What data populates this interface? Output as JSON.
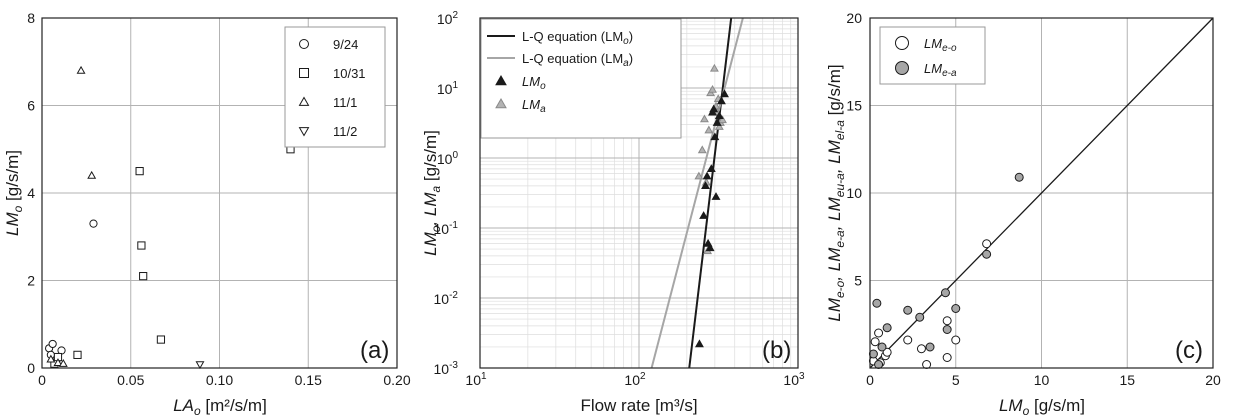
{
  "chart_data": [
    {
      "panel": "(a)",
      "type": "scatter",
      "xlabel_main": "LA",
      "xlabel_sub": "o",
      "xlabel_unit": " [m²/s/m]",
      "ylabel_main": "LM",
      "ylabel_sub": "o",
      "ylabel_unit": " [g/s/m]",
      "xlim": [
        0,
        0.2
      ],
      "ylim": [
        0,
        8
      ],
      "xticks": [
        0,
        0.05,
        0.1,
        0.15,
        0.2
      ],
      "xtick_labels": [
        "0",
        "0.05",
        "0.10",
        "0.15",
        "0.20"
      ],
      "yticks": [
        2,
        4,
        6,
        8
      ],
      "ytick_labels": [
        "2",
        "4",
        "6",
        "8"
      ],
      "grid": true,
      "legend_position": "top-right",
      "series": [
        {
          "name": "9/24",
          "marker": "circle",
          "x": [
            0.004,
            0.006,
            0.005,
            0.011,
            0.008,
            0.029
          ],
          "y": [
            0.45,
            0.55,
            0.3,
            0.4,
            0.15,
            3.3
          ]
        },
        {
          "name": "10/31",
          "marker": "square",
          "x": [
            0.007,
            0.009,
            0.02,
            0.055,
            0.056,
            0.057,
            0.067,
            0.14
          ],
          "y": [
            0.1,
            0.25,
            0.3,
            4.5,
            2.8,
            2.1,
            0.65,
            5.0
          ]
        },
        {
          "name": "11/1",
          "marker": "triangle-up",
          "x": [
            0.005,
            0.009,
            0.012,
            0.022,
            0.028
          ],
          "y": [
            0.2,
            0.12,
            0.1,
            6.8,
            4.4
          ]
        },
        {
          "name": "11/2",
          "marker": "triangle-down",
          "x": [
            0.089
          ],
          "y": [
            0.08
          ]
        }
      ]
    },
    {
      "panel": "(b)",
      "type": "scatter",
      "xscale": "log",
      "yscale": "log",
      "xlabel": "Flow rate [m³/s]",
      "ylabel_main": "LM",
      "ylabel_sub1": "o",
      "ylabel_sep": ", LM",
      "ylabel_sub2": "a",
      "ylabel_unit": " [g/s/m]",
      "xlim": [
        10,
        1000
      ],
      "ylim": [
        0.001,
        100
      ],
      "xtick_labels": [
        "10",
        "10",
        "10"
      ],
      "xtick_exps": [
        "1",
        "2",
        "3"
      ],
      "ytick_labels": [
        "10",
        "10",
        "10",
        "10",
        "10",
        "10"
      ],
      "ytick_exps": [
        "-3",
        "-2",
        "-1",
        "0",
        "1",
        "2"
      ],
      "grid": true,
      "legend_position": "top-left",
      "lines": [
        {
          "name": "L-Q equation (LM",
          "name_sub": "o",
          "name_tail": ")",
          "color": "#1a1a1a",
          "x": [
            207,
            380
          ],
          "y": [
            0.001,
            100
          ]
        },
        {
          "name": "L-Q equation (LM",
          "name_sub": "a",
          "name_tail": ")",
          "color": "#a6a6a6",
          "x": [
            120,
            450
          ],
          "y": [
            0.001,
            100
          ]
        }
      ],
      "series": [
        {
          "name": "LM",
          "name_sub": "o",
          "marker": "triangle-filled",
          "color": "#1a1a1a",
          "x": [
            240,
            255,
            262,
            268,
            272,
            280,
            285,
            290,
            295,
            300,
            305,
            310,
            320,
            330,
            345
          ],
          "y": [
            0.0022,
            0.15,
            0.4,
            0.55,
            0.06,
            0.052,
            0.7,
            4.5,
            5.0,
            2.0,
            0.28,
            3.2,
            4.0,
            6.5,
            8.2
          ]
        },
        {
          "name": "LM",
          "name_sub": "a",
          "marker": "triangle-gray",
          "color": "#b3b3b3",
          "x": [
            238,
            250,
            258,
            265,
            270,
            275,
            282,
            290,
            298,
            305,
            310,
            315,
            320,
            325,
            335
          ],
          "y": [
            0.55,
            1.3,
            3.6,
            0.45,
            0.047,
            2.5,
            8.5,
            9.5,
            19,
            5.5,
            4.5,
            7.0,
            2.8,
            3.2,
            3.5
          ]
        }
      ]
    },
    {
      "panel": "(c)",
      "type": "scatter",
      "xlabel_main": "LM",
      "xlabel_sub": "o",
      "xlabel_unit": " [g/s/m]",
      "ylabel": "LMe-o, LMe-a, LMeu-a, LMel-a [g/s/m]",
      "ylabel_parts": [
        {
          "t": "LM"
        },
        {
          "t": "e-o",
          "sub": true
        },
        {
          "t": ", LM"
        },
        {
          "t": "e-a",
          "sub": true
        },
        {
          "t": ", LM"
        },
        {
          "t": "eu-a",
          "sub": true
        },
        {
          "t": ", LM"
        },
        {
          "t": "el-a",
          "sub": true
        },
        {
          "t": " [g/s/m]"
        }
      ],
      "xlim": [
        0,
        20
      ],
      "ylim": [
        0,
        20
      ],
      "xticks": [
        0,
        5,
        10,
        15,
        20
      ],
      "yticks": [
        5,
        10,
        15,
        20
      ],
      "xtick_labels": [
        "0",
        "5",
        "10",
        "15",
        "20"
      ],
      "ytick_labels": [
        "5",
        "10",
        "15",
        "20"
      ],
      "grid": true,
      "legend_position": "top-left",
      "reference_line": {
        "x": [
          0,
          20
        ],
        "y": [
          0,
          20
        ]
      },
      "series": [
        {
          "name": "LM",
          "name_sub": "e-o",
          "marker": "circle-open",
          "color": "#ffffff",
          "x": [
            0.3,
            0.5,
            0.9,
            1.0,
            2.2,
            3.0,
            3.3,
            4.5,
            4.5,
            5.0,
            6.8,
            0.2,
            0.6
          ],
          "y": [
            1.5,
            2.0,
            0.7,
            0.9,
            1.6,
            1.1,
            0.2,
            2.7,
            0.6,
            1.6,
            7.1,
            0.4,
            0.3
          ]
        },
        {
          "name": "LM",
          "name_sub": "e-a",
          "marker": "circle-gray",
          "color": "#a6a6a6",
          "x": [
            0.4,
            0.7,
            1.0,
            2.2,
            2.9,
            3.5,
            4.4,
            4.5,
            5.0,
            6.8,
            8.7,
            0.2,
            0.5
          ],
          "y": [
            3.7,
            1.2,
            2.3,
            3.3,
            2.9,
            1.2,
            4.3,
            2.2,
            3.4,
            6.5,
            10.9,
            0.8,
            0.2
          ]
        }
      ]
    }
  ],
  "panel_labels": {
    "a": "(a)",
    "b": "(b)",
    "c": "(c)"
  }
}
